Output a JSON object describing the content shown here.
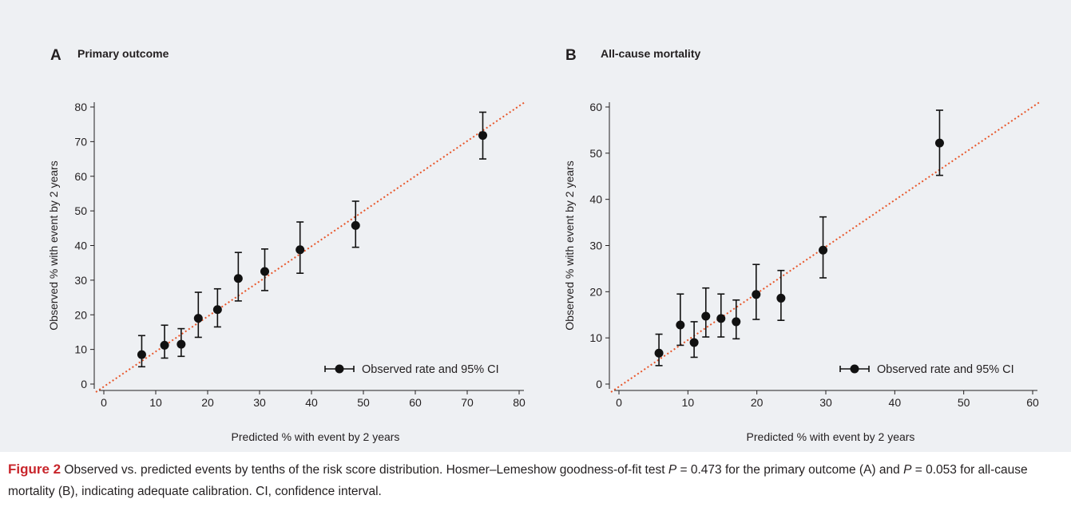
{
  "chart_data": [
    {
      "type": "scatter",
      "panel": "A",
      "title": "Primary outcome",
      "xlabel": "Predicted % with event by 2 years",
      "ylabel": "Observed % with event by 2 years",
      "xlim": [
        0,
        80
      ],
      "ylim": [
        0,
        80
      ],
      "xticks": [
        0,
        10,
        20,
        30,
        40,
        50,
        60,
        70,
        80
      ],
      "yticks": [
        0,
        10,
        20,
        30,
        40,
        50,
        60,
        70,
        80
      ],
      "grid": false,
      "legend": {
        "label": "Observed rate and 95% CI",
        "placement": "bottom-right"
      },
      "reference_line": {
        "type": "identity",
        "style": "dotted",
        "color": "#e8562a"
      },
      "point_color": "#111111",
      "series": [
        {
          "name": "Observed rate and 95% CI",
          "points": [
            {
              "x": 7.3,
              "y": 8.5,
              "lo": 5.0,
              "hi": 14.0
            },
            {
              "x": 11.7,
              "y": 11.2,
              "lo": 7.5,
              "hi": 17.0
            },
            {
              "x": 14.9,
              "y": 11.5,
              "lo": 8.0,
              "hi": 16.0
            },
            {
              "x": 18.2,
              "y": 19.0,
              "lo": 13.5,
              "hi": 26.5
            },
            {
              "x": 21.9,
              "y": 21.5,
              "lo": 16.5,
              "hi": 27.5
            },
            {
              "x": 25.9,
              "y": 30.5,
              "lo": 24.0,
              "hi": 38.0
            },
            {
              "x": 31.0,
              "y": 32.5,
              "lo": 27.0,
              "hi": 39.0
            },
            {
              "x": 37.8,
              "y": 38.8,
              "lo": 32.0,
              "hi": 46.8
            },
            {
              "x": 48.5,
              "y": 45.8,
              "lo": 39.5,
              "hi": 52.8
            },
            {
              "x": 73.0,
              "y": 71.8,
              "lo": 65.0,
              "hi": 78.5
            }
          ]
        }
      ]
    },
    {
      "type": "scatter",
      "panel": "B",
      "title": "All-cause mortality",
      "xlabel": "Predicted % with event by 2 years",
      "ylabel": "Observed % with event by 2 years",
      "xlim": [
        0,
        60
      ],
      "ylim": [
        0,
        60
      ],
      "xticks": [
        0,
        10,
        20,
        30,
        40,
        50,
        60
      ],
      "yticks": [
        0,
        10,
        20,
        30,
        40,
        50,
        60
      ],
      "grid": false,
      "legend": {
        "label": "Observed rate and 95% CI",
        "placement": "bottom-right"
      },
      "reference_line": {
        "type": "identity",
        "style": "dotted",
        "color": "#e8562a"
      },
      "point_color": "#111111",
      "series": [
        {
          "name": "Observed rate and 95% CI",
          "points": [
            {
              "x": 5.8,
              "y": 6.7,
              "lo": 4.0,
              "hi": 10.8
            },
            {
              "x": 8.9,
              "y": 12.8,
              "lo": 8.4,
              "hi": 19.5
            },
            {
              "x": 10.9,
              "y": 9.0,
              "lo": 5.8,
              "hi": 13.5
            },
            {
              "x": 12.6,
              "y": 14.7,
              "lo": 10.2,
              "hi": 20.8
            },
            {
              "x": 14.8,
              "y": 14.2,
              "lo": 10.2,
              "hi": 19.5
            },
            {
              "x": 17.0,
              "y": 13.5,
              "lo": 9.8,
              "hi": 18.2
            },
            {
              "x": 19.9,
              "y": 19.4,
              "lo": 14.0,
              "hi": 25.9
            },
            {
              "x": 23.5,
              "y": 18.6,
              "lo": 13.8,
              "hi": 24.6
            },
            {
              "x": 29.6,
              "y": 29.0,
              "lo": 23.0,
              "hi": 36.2
            },
            {
              "x": 46.5,
              "y": 52.2,
              "lo": 45.2,
              "hi": 59.3
            }
          ]
        }
      ]
    }
  ],
  "caption": {
    "figure_label": "Figure 2",
    "text_1": " Observed vs. predicted events by tenths of the risk score distribution. Hosmer–Lemeshow goodness-of-fit test ",
    "p_symbol_1": "P",
    "text_2": " = 0.473 for the primary outcome (A) and ",
    "p_symbol_2": "P",
    "text_3": " = 0.053 for all-cause mortality (B), indicating adequate calibration. CI, confidence interval."
  }
}
